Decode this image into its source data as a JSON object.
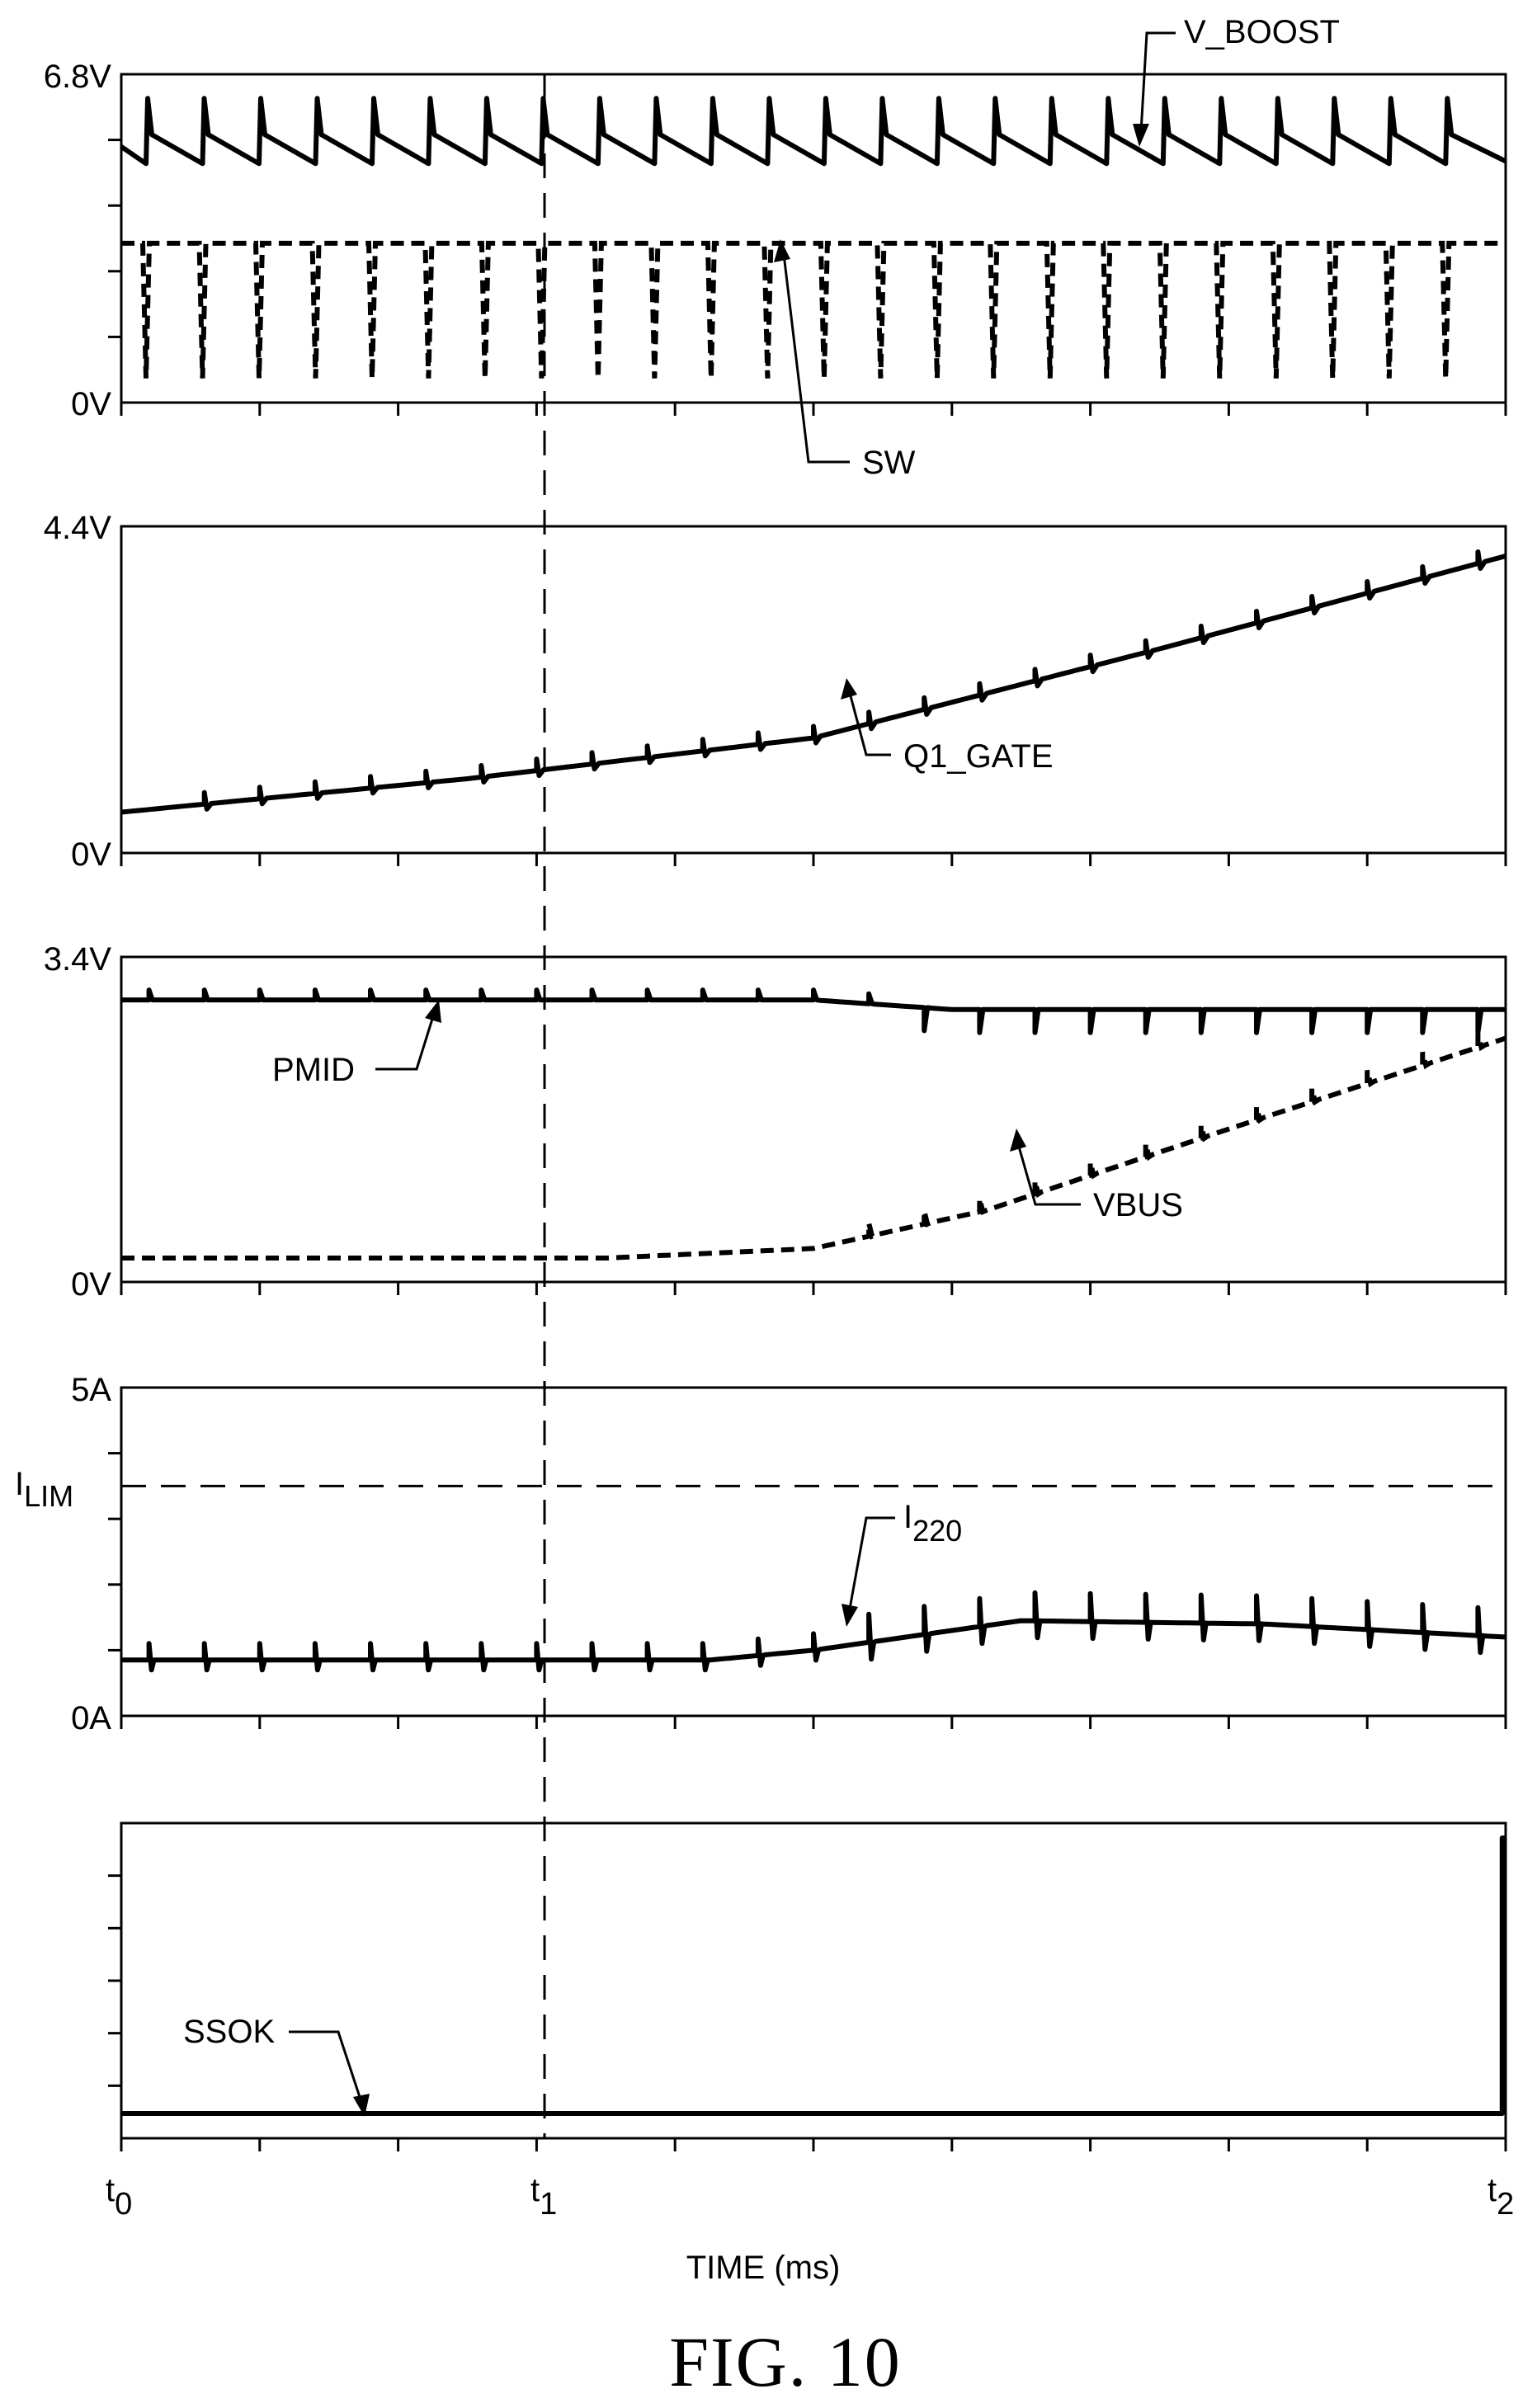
{
  "figure": {
    "caption": "FIG. 10",
    "xlabel": "TIME  (ms)",
    "time_markers": [
      {
        "base": "t",
        "sub": "0"
      },
      {
        "base": "t",
        "sub": "1"
      },
      {
        "base": "t",
        "sub": "2"
      }
    ]
  },
  "chart_data": [
    {
      "type": "line",
      "panel": 1,
      "y_tick_labels": [
        "6.8V",
        "0V"
      ],
      "ylim_label": [
        "0V",
        "6.8V"
      ],
      "grid": false,
      "series": [
        {
          "name": "V_BOOST",
          "style": "solid",
          "description_values": {
            "level_V": 5.3,
            "peak_V": 6.3
          }
        },
        {
          "name": "SW",
          "style": "dashed",
          "description_values": {
            "level_V": 3.3,
            "trough_V": 0.5
          }
        }
      ]
    },
    {
      "type": "line",
      "panel": 2,
      "y_tick_labels": [
        "4.4V",
        "0V"
      ],
      "ylim_label": [
        "0V",
        "4.4V"
      ],
      "series": [
        {
          "name": "Q1_GATE",
          "style": "solid",
          "t": [
            0,
            0.5,
            1,
            1.5,
            2
          ],
          "v": [
            0.55,
            1.0,
            1.55,
            2.75,
            4.0
          ]
        }
      ]
    },
    {
      "type": "line",
      "panel": 3,
      "y_tick_labels": [
        "3.4V",
        "0V"
      ],
      "ylim_label": [
        "0V",
        "3.4V"
      ],
      "series": [
        {
          "name": "PMID",
          "style": "solid",
          "t": [
            0,
            1,
            1.2,
            2
          ],
          "v": [
            2.95,
            2.95,
            2.85,
            2.85
          ]
        },
        {
          "name": "VBUS",
          "style": "dashed",
          "t": [
            0,
            0.7,
            1,
            1.25,
            1.6,
            2
          ],
          "v": [
            0.25,
            0.25,
            0.35,
            0.75,
            1.6,
            2.55
          ]
        }
      ]
    },
    {
      "type": "line",
      "panel": 4,
      "y_tick_labels": [
        "5A",
        "0A"
      ],
      "ylim_label": [
        "0A",
        "5A"
      ],
      "reference": {
        "label_base": "I",
        "label_sub": "LIM",
        "value_A": 3.5
      },
      "series": [
        {
          "name_base": "I",
          "name_sub": "220",
          "style": "solid",
          "t": [
            0,
            0.85,
            1,
            1.3,
            1.65,
            2
          ],
          "i": [
            0.85,
            0.85,
            1.0,
            1.45,
            1.4,
            1.2
          ]
        }
      ]
    },
    {
      "type": "line",
      "panel": 5,
      "y_tick_labels": [],
      "series": [
        {
          "name": "SSOK",
          "style": "solid",
          "t": [
            0,
            1.995,
            1.995,
            2
          ],
          "level": [
            0,
            0,
            1,
            1
          ]
        }
      ]
    }
  ]
}
